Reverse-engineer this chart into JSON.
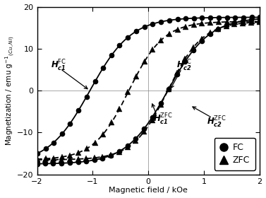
{
  "title": "",
  "xlabel": "Magnetic field / kOe",
  "ylabel": "Magnetization / emu g$^{-1}$$_{(Cu, Ni)}$",
  "xlim": [
    -2,
    2
  ],
  "ylim": [
    -20,
    20
  ],
  "xticks": [
    -2,
    -1,
    0,
    1,
    2
  ],
  "yticks": [
    -20,
    -10,
    0,
    10,
    20
  ],
  "background": "white",
  "fc_ms": 17.5,
  "fc_hc": 0.7,
  "fc_shift": -0.35,
  "fc_steep": 1.35,
  "zfc_ms": 16.5,
  "zfc_hc": 0.38,
  "zfc_shift": 0.0,
  "zfc_steep": 1.6,
  "n_markers": 28,
  "marker_size_circle": 5.5,
  "marker_size_triangle": 5.5,
  "linewidth": 1.3
}
